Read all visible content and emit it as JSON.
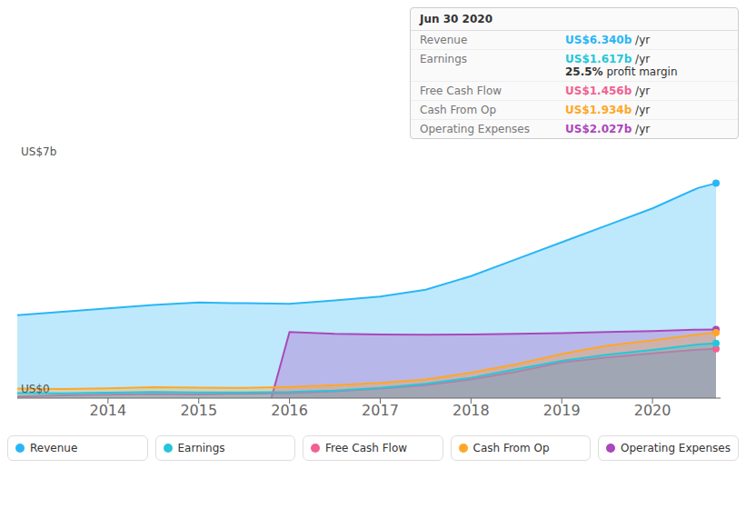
{
  "chart_data": {
    "type": "area",
    "xlim": [
      2013,
      2020.75
    ],
    "ylim": [
      0,
      7
    ],
    "xticks": [
      2014,
      2015,
      2016,
      2017,
      2018,
      2019,
      2020
    ],
    "yticks": [
      0,
      1.75,
      3.5,
      5.25,
      7
    ],
    "grid": true,
    "tick_labels": "x",
    "legend": "bottom",
    "legend_items": [
      "Revenue",
      "Earnings",
      "Free Cash Flow",
      "Cash From Op",
      "Operating Expenses"
    ],
    "annotations": [
      {
        "text": "US$7b",
        "y": 7
      },
      {
        "text": "US$0",
        "y": 0
      }
    ],
    "series": [
      {
        "name": "Revenue",
        "color": "#29b6f6",
        "x": [
          2013.0,
          2013.5,
          2014.0,
          2014.5,
          2015.0,
          2015.5,
          2016.0,
          2016.5,
          2017.0,
          2017.5,
          2018.0,
          2018.5,
          2019.0,
          2019.5,
          2020.0,
          2020.5,
          2020.7
        ],
        "values": [
          2.45,
          2.55,
          2.65,
          2.75,
          2.82,
          2.8,
          2.78,
          2.88,
          3.0,
          3.2,
          3.6,
          4.1,
          4.6,
          5.1,
          5.6,
          6.2,
          6.34
        ]
      },
      {
        "name": "Operating Expenses",
        "color": "#ab47bc",
        "x": [
          2015.8,
          2016.0,
          2016.5,
          2017.0,
          2017.5,
          2018.0,
          2018.5,
          2019.0,
          2019.5,
          2020.0,
          2020.5,
          2020.7
        ],
        "values": [
          0.0,
          1.95,
          1.9,
          1.88,
          1.87,
          1.88,
          1.9,
          1.92,
          1.95,
          1.98,
          2.02,
          2.027
        ]
      },
      {
        "name": "Cash From Op",
        "color": "#ffa726",
        "x": [
          2013.0,
          2013.5,
          2014.0,
          2014.5,
          2015.0,
          2015.5,
          2016.0,
          2016.5,
          2017.0,
          2017.5,
          2018.0,
          2018.5,
          2019.0,
          2019.5,
          2020.0,
          2020.5,
          2020.7
        ],
        "values": [
          0.28,
          0.27,
          0.29,
          0.32,
          0.31,
          0.3,
          0.33,
          0.38,
          0.45,
          0.55,
          0.75,
          1.0,
          1.3,
          1.55,
          1.7,
          1.88,
          1.934
        ]
      },
      {
        "name": "Free Cash Flow",
        "color": "#f06292",
        "x": [
          2013.0,
          2013.5,
          2014.0,
          2014.5,
          2015.0,
          2015.5,
          2016.0,
          2016.5,
          2017.0,
          2017.5,
          2018.0,
          2018.5,
          2019.0,
          2019.5,
          2020.0,
          2020.5,
          2020.7
        ],
        "values": [
          0.05,
          0.08,
          0.1,
          0.12,
          0.11,
          0.13,
          0.15,
          0.2,
          0.28,
          0.38,
          0.55,
          0.78,
          1.05,
          1.2,
          1.32,
          1.43,
          1.456
        ]
      },
      {
        "name": "Earnings",
        "color": "#26c6da",
        "x": [
          2013.0,
          2013.5,
          2014.0,
          2014.5,
          2015.0,
          2015.5,
          2016.0,
          2016.5,
          2017.0,
          2017.5,
          2018.0,
          2018.5,
          2019.0,
          2019.5,
          2020.0,
          2020.5,
          2020.7
        ],
        "values": [
          0.15,
          0.14,
          0.16,
          0.18,
          0.17,
          0.17,
          0.18,
          0.22,
          0.3,
          0.42,
          0.6,
          0.85,
          1.1,
          1.28,
          1.42,
          1.58,
          1.617
        ]
      }
    ],
    "info_box": {
      "title": "Jun 30 2020",
      "rows": [
        {
          "label": "Revenue",
          "text": "US$6.340b",
          "unit": " /yr",
          "color": "#29b6f6"
        },
        {
          "label": "Earnings",
          "text": "US$1.617b",
          "unit": " /yr",
          "color": "#26c6da",
          "extra": "25.5% profit margin"
        },
        {
          "label": "Free Cash Flow",
          "text": "US$1.456b",
          "unit": " /yr",
          "color": "#f06292"
        },
        {
          "label": "Cash From Op",
          "text": "US$1.934b",
          "unit": " /yr",
          "color": "#ffa726"
        },
        {
          "label": "Operating Expenses",
          "text": "US$2.027b",
          "unit": " /yr",
          "color": "#ab47bc"
        }
      ]
    }
  }
}
